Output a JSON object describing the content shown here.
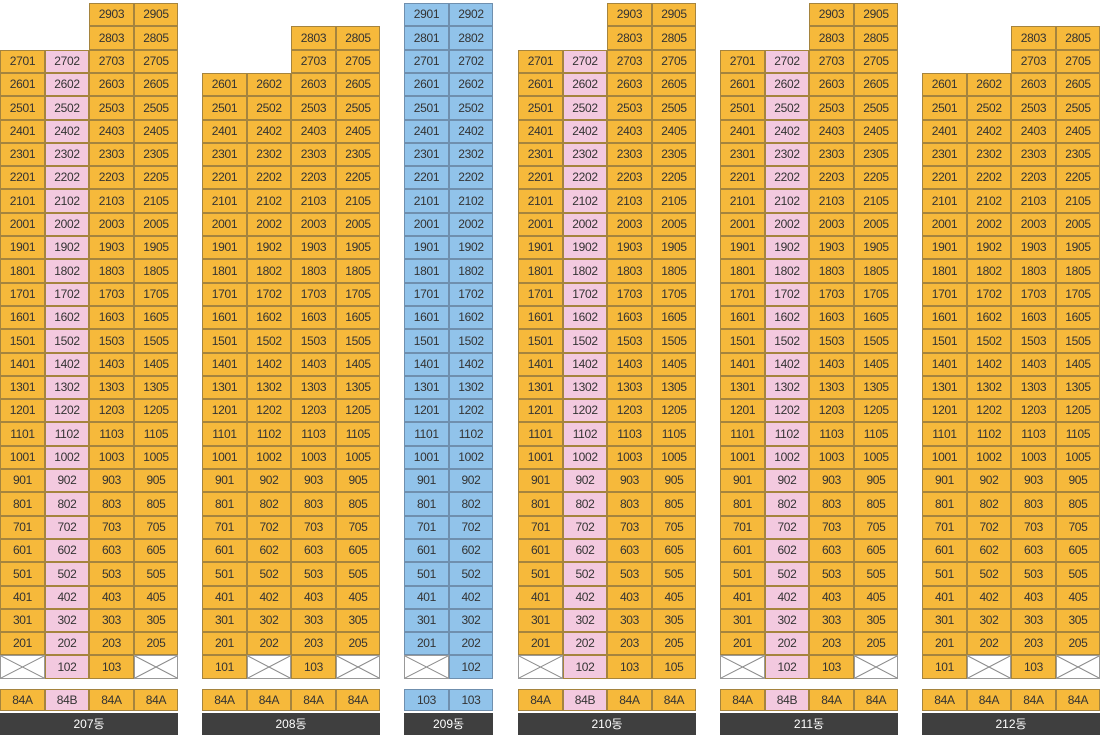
{
  "colors": {
    "orange": "#f6b93b",
    "pink": "#f3c9df",
    "blue": "#91c3ea",
    "label_bg": "#3f3f3f"
  },
  "buildings": [
    {
      "name": "207동",
      "top_floor": 29,
      "columns": [
        {
          "unit": "01",
          "color": "orange",
          "top_floor": 27,
          "second_floor_empty": true
        },
        {
          "unit": "02",
          "color": "pink",
          "top_floor": 27,
          "second_floor_empty": false
        },
        {
          "unit": "03",
          "color": "orange",
          "top_floor": 29,
          "second_floor_empty": false
        },
        {
          "unit": "05",
          "color": "orange",
          "top_floor": 29,
          "second_floor_empty": true
        }
      ],
      "types": [
        "84A",
        "84B",
        "84A",
        "84A"
      ]
    },
    {
      "name": "208동",
      "top_floor": 29,
      "columns": [
        {
          "unit": "01",
          "color": "orange",
          "top_floor": 26,
          "second_floor_empty": false
        },
        {
          "unit": "02",
          "color": "orange",
          "top_floor": 26,
          "second_floor_empty": true
        },
        {
          "unit": "03",
          "color": "orange",
          "top_floor": 28,
          "second_floor_empty": false
        },
        {
          "unit": "05",
          "color": "orange",
          "top_floor": 28,
          "second_floor_empty": true
        }
      ],
      "types": [
        "84A",
        "84A",
        "84A",
        "84A"
      ]
    },
    {
      "name": "209동",
      "top_floor": 29,
      "columns": [
        {
          "unit": "01",
          "color": "blue",
          "top_floor": 29,
          "second_floor_empty": true
        },
        {
          "unit": "02",
          "color": "blue",
          "top_floor": 29,
          "second_floor_empty": false
        }
      ],
      "types": [
        "103",
        "103"
      ]
    },
    {
      "name": "210동",
      "top_floor": 29,
      "columns": [
        {
          "unit": "01",
          "color": "orange",
          "top_floor": 27,
          "second_floor_empty": true
        },
        {
          "unit": "02",
          "color": "pink",
          "top_floor": 27,
          "second_floor_empty": false
        },
        {
          "unit": "03",
          "color": "orange",
          "top_floor": 29,
          "second_floor_empty": false
        },
        {
          "unit": "05",
          "color": "orange",
          "top_floor": 29,
          "second_floor_empty": false
        }
      ],
      "types": [
        "84A",
        "84B",
        "84A",
        "84A"
      ]
    },
    {
      "name": "211동",
      "top_floor": 29,
      "columns": [
        {
          "unit": "01",
          "color": "orange",
          "top_floor": 27,
          "second_floor_empty": true
        },
        {
          "unit": "02",
          "color": "pink",
          "top_floor": 27,
          "second_floor_empty": false
        },
        {
          "unit": "03",
          "color": "orange",
          "top_floor": 29,
          "second_floor_empty": false
        },
        {
          "unit": "05",
          "color": "orange",
          "top_floor": 29,
          "second_floor_empty": true
        }
      ],
      "types": [
        "84A",
        "84B",
        "84A",
        "84A"
      ]
    },
    {
      "name": "212동",
      "top_floor": 29,
      "columns": [
        {
          "unit": "01",
          "color": "orange",
          "top_floor": 26,
          "second_floor_empty": false
        },
        {
          "unit": "02",
          "color": "orange",
          "top_floor": 26,
          "second_floor_empty": true
        },
        {
          "unit": "03",
          "color": "orange",
          "top_floor": 28,
          "second_floor_empty": false
        },
        {
          "unit": "05",
          "color": "orange",
          "top_floor": 28,
          "second_floor_empty": true
        }
      ],
      "types": [
        "84A",
        "84A",
        "84A",
        "84A"
      ]
    }
  ]
}
